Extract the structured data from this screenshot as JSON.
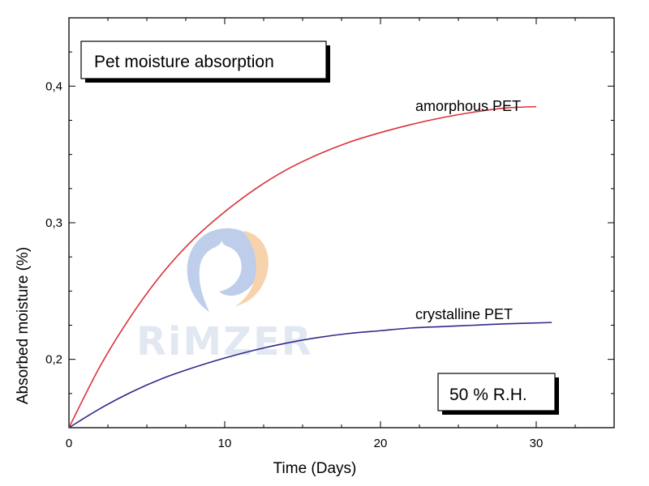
{
  "chart_data": {
    "type": "line",
    "title": "Pet moisture absorption",
    "annotation": "50 % R.H.",
    "xlabel": "Time (Days)",
    "ylabel": "Absorbed moisture (%)",
    "xlim": [
      0,
      35
    ],
    "ylim": [
      0.15,
      0.45
    ],
    "xticks": [
      0,
      10,
      20,
      30
    ],
    "xtick_labels": [
      "0",
      "10",
      "20",
      "30"
    ],
    "yticks": [
      0.2,
      0.3,
      0.4
    ],
    "ytick_labels": [
      "0,2",
      "0,3",
      "0,4"
    ],
    "grid": false,
    "series": [
      {
        "name": "amorphous PET",
        "color": "#d9323a",
        "x": [
          0,
          2,
          4,
          6,
          8,
          10,
          12,
          14,
          16,
          18,
          20,
          22,
          24,
          26,
          28,
          30
        ],
        "y": [
          0.15,
          0.195,
          0.232,
          0.263,
          0.288,
          0.308,
          0.325,
          0.339,
          0.35,
          0.359,
          0.366,
          0.372,
          0.377,
          0.381,
          0.384,
          0.385
        ]
      },
      {
        "name": "crystalline PET",
        "color": "#2e2a8a",
        "x": [
          0,
          2,
          4,
          6,
          8,
          10,
          12,
          14,
          16,
          18,
          20,
          22,
          24,
          26,
          28,
          31
        ],
        "y": [
          0.15,
          0.164,
          0.176,
          0.186,
          0.194,
          0.201,
          0.207,
          0.212,
          0.216,
          0.219,
          0.221,
          0.223,
          0.224,
          0.225,
          0.226,
          0.227
        ]
      }
    ]
  },
  "watermark": {
    "text": "RiMZER",
    "color": "#9fb2d6"
  }
}
